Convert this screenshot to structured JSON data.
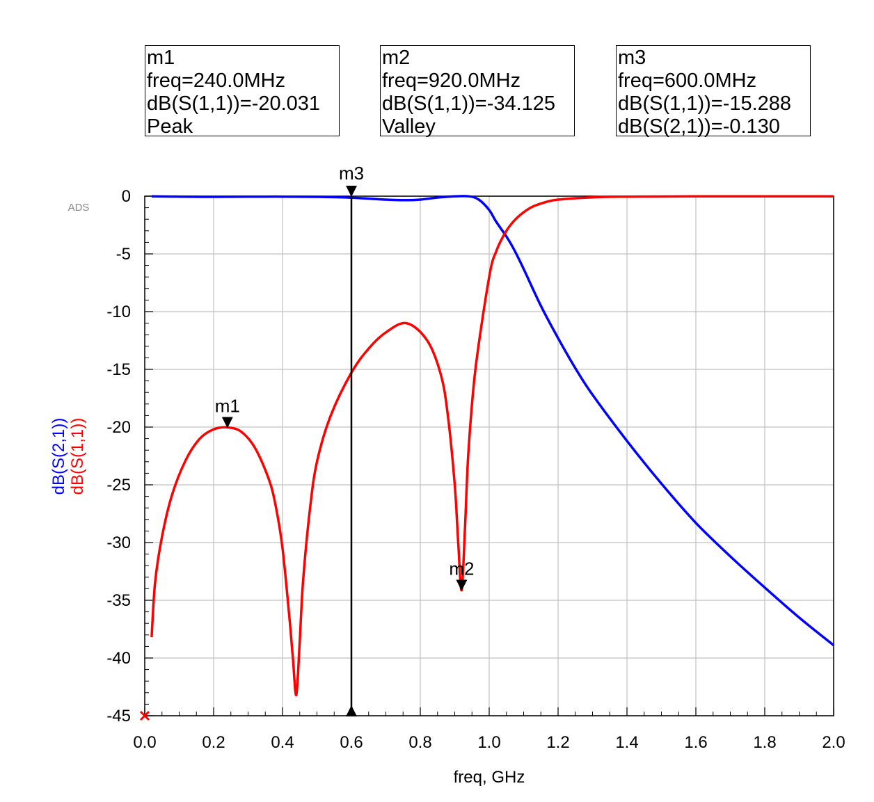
{
  "markers": [
    {
      "name": "m1",
      "freq_text": "freq=240.0MHz",
      "line1": "dB(S(1,1))=-20.031",
      "line2": "Peak"
    },
    {
      "name": "m2",
      "freq_text": "freq=920.0MHz",
      "line1": "dB(S(1,1))=-34.125",
      "line2": "Valley"
    },
    {
      "name": "m3",
      "freq_text": "freq=600.0MHz",
      "line1": "dB(S(1,1))=-15.288",
      "line2": "dB(S(2,1))=-0.130"
    }
  ],
  "watermark": "ADS",
  "colors": {
    "s21": "#0000ff",
    "s11": "#ff0000",
    "axis": "#000000",
    "grid": "#c0c0c0"
  },
  "chart_data": {
    "type": "line",
    "title": "",
    "xlabel": "freq, GHz",
    "ylabel_series": [
      "dB(S(2,1))",
      "dB(S(1,1))"
    ],
    "xlim": [
      0.0,
      2.0
    ],
    "ylim": [
      -45,
      0
    ],
    "xticks": [
      "0.0",
      "0.2",
      "0.4",
      "0.6",
      "0.8",
      "1.0",
      "1.2",
      "1.4",
      "1.6",
      "1.8",
      "2.0"
    ],
    "yticks": [
      "0",
      "-5",
      "-10",
      "-15",
      "-20",
      "-25",
      "-30",
      "-35",
      "-40",
      "-45"
    ],
    "grid": true,
    "series": [
      {
        "name": "dB(S(2,1))",
        "x": [
          0.02,
          0.1,
          0.2,
          0.3,
          0.4,
          0.5,
          0.6,
          0.7,
          0.76,
          0.8,
          0.85,
          0.9,
          0.94,
          0.97,
          1.0,
          1.02,
          1.05,
          1.07,
          1.1,
          1.15,
          1.2,
          1.25,
          1.3,
          1.4,
          1.5,
          1.6,
          1.7,
          1.8,
          1.9,
          2.0
        ],
        "y": [
          -0.02,
          -0.04,
          -0.06,
          -0.05,
          -0.04,
          -0.06,
          -0.13,
          -0.3,
          -0.35,
          -0.3,
          -0.12,
          -0.02,
          -0.01,
          -0.3,
          -1.2,
          -2.2,
          -3.5,
          -4.5,
          -6.3,
          -9.5,
          -12.3,
          -14.9,
          -17.2,
          -21.2,
          -24.9,
          -28.3,
          -31.2,
          -33.9,
          -36.5,
          -38.9
        ]
      },
      {
        "name": "dB(S(1,1))",
        "x": [
          0.02,
          0.03,
          0.05,
          0.08,
          0.12,
          0.16,
          0.2,
          0.24,
          0.28,
          0.32,
          0.36,
          0.38,
          0.4,
          0.42,
          0.43,
          0.44,
          0.45,
          0.46,
          0.48,
          0.5,
          0.54,
          0.6,
          0.65,
          0.7,
          0.76,
          0.82,
          0.86,
          0.88,
          0.9,
          0.91,
          0.92,
          0.93,
          0.94,
          0.96,
          1.0,
          1.02,
          1.05,
          1.08,
          1.12,
          1.16,
          1.2,
          1.3,
          1.4,
          1.6,
          2.0
        ],
        "y": [
          -38.2,
          -33.5,
          -29.5,
          -25.8,
          -22.8,
          -21.0,
          -20.2,
          -20.03,
          -20.4,
          -21.8,
          -24.5,
          -26.8,
          -30.5,
          -36.5,
          -40.0,
          -43.2,
          -38.5,
          -33.2,
          -27.0,
          -23.0,
          -19.0,
          -15.288,
          -13.2,
          -11.8,
          -11.0,
          -12.5,
          -15.5,
          -19.0,
          -25.0,
          -30.0,
          -34.125,
          -28.5,
          -22.0,
          -15.0,
          -7.0,
          -4.8,
          -3.0,
          -1.9,
          -1.0,
          -0.55,
          -0.3,
          -0.1,
          -0.04,
          -0.02,
          -0.01
        ]
      }
    ],
    "marker_points": [
      {
        "label": "m1",
        "x": 0.24,
        "y": -20.031,
        "series": "dB(S(1,1))"
      },
      {
        "label": "m2",
        "x": 0.92,
        "y": -34.125,
        "series": "dB(S(1,1))"
      },
      {
        "label": "m3",
        "x": 0.6,
        "y": 0.0,
        "series": "vertical"
      }
    ]
  }
}
